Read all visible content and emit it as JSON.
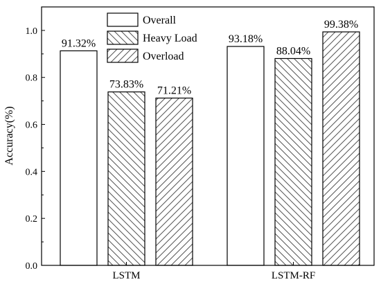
{
  "chart_data": {
    "type": "bar",
    "title": "",
    "xlabel": "",
    "ylabel": "Accuracy(%)",
    "ylim": [
      0.0,
      1.1
    ],
    "yticks": [
      "0.0",
      "0.2",
      "0.4",
      "0.6",
      "0.8",
      "1.0"
    ],
    "grid": false,
    "legend_position": "top-center",
    "categories": [
      "LSTM",
      "LSTM-RF"
    ],
    "series": [
      {
        "name": "Overall",
        "pattern": "none",
        "values": [
          0.9132,
          0.9318
        ],
        "labels": [
          "91.32%",
          "93.18%"
        ]
      },
      {
        "name": "Heavy Load",
        "pattern": "backslash-hatch",
        "values": [
          0.7383,
          0.8804
        ],
        "labels": [
          "73.83%",
          "88.04%"
        ]
      },
      {
        "name": "Overload",
        "pattern": "slash-hatch",
        "values": [
          0.7121,
          0.9938
        ],
        "labels": [
          "71.21%",
          "99.38%"
        ]
      }
    ],
    "colors": {
      "stroke": "#000000",
      "fill": "#ffffff",
      "hatch": "#555555"
    }
  }
}
